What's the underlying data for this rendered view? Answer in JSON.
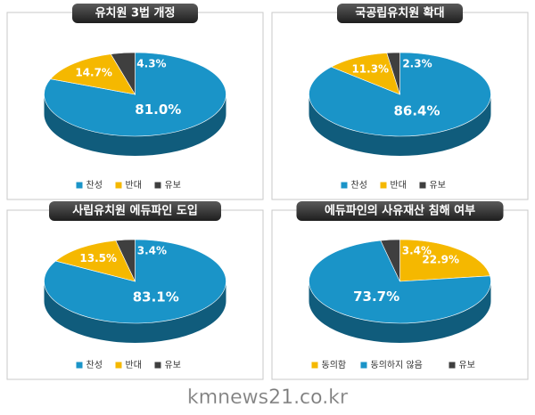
{
  "chart_data": [
    {
      "type": "pie",
      "title": "유치원 3법 개정",
      "categories": [
        "찬성",
        "반대",
        "유보"
      ],
      "values": [
        81.0,
        14.7,
        4.3
      ],
      "value_labels": [
        "81.0%",
        "14.7%",
        "4.3%"
      ],
      "colors": [
        "#1a94c8",
        "#f5b800",
        "#3f3f3f"
      ]
    },
    {
      "type": "pie",
      "title": "국공립유치원 확대",
      "categories": [
        "찬성",
        "반대",
        "유보"
      ],
      "values": [
        86.4,
        11.3,
        2.3
      ],
      "value_labels": [
        "86.4%",
        "11.3%",
        "2.3%"
      ],
      "colors": [
        "#1a94c8",
        "#f5b800",
        "#3f3f3f"
      ]
    },
    {
      "type": "pie",
      "title": "사립유치원 에듀파인 도입",
      "categories": [
        "찬성",
        "반대",
        "유보"
      ],
      "values": [
        83.1,
        13.5,
        3.4
      ],
      "value_labels": [
        "83.1%",
        "13.5%",
        "3.4%"
      ],
      "colors": [
        "#1a94c8",
        "#f5b800",
        "#3f3f3f"
      ]
    },
    {
      "type": "pie",
      "title": "에듀파인의 사유재산 침해 여부",
      "categories": [
        "동의함",
        "동의하지 않음",
        "유보"
      ],
      "values": [
        22.9,
        73.7,
        3.4
      ],
      "value_labels": [
        "22.9%",
        "73.7%",
        "3.4%"
      ],
      "colors": [
        "#f5b800",
        "#1a94c8",
        "#3f3f3f"
      ]
    }
  ],
  "watermark": "kmnews21.co.kr"
}
